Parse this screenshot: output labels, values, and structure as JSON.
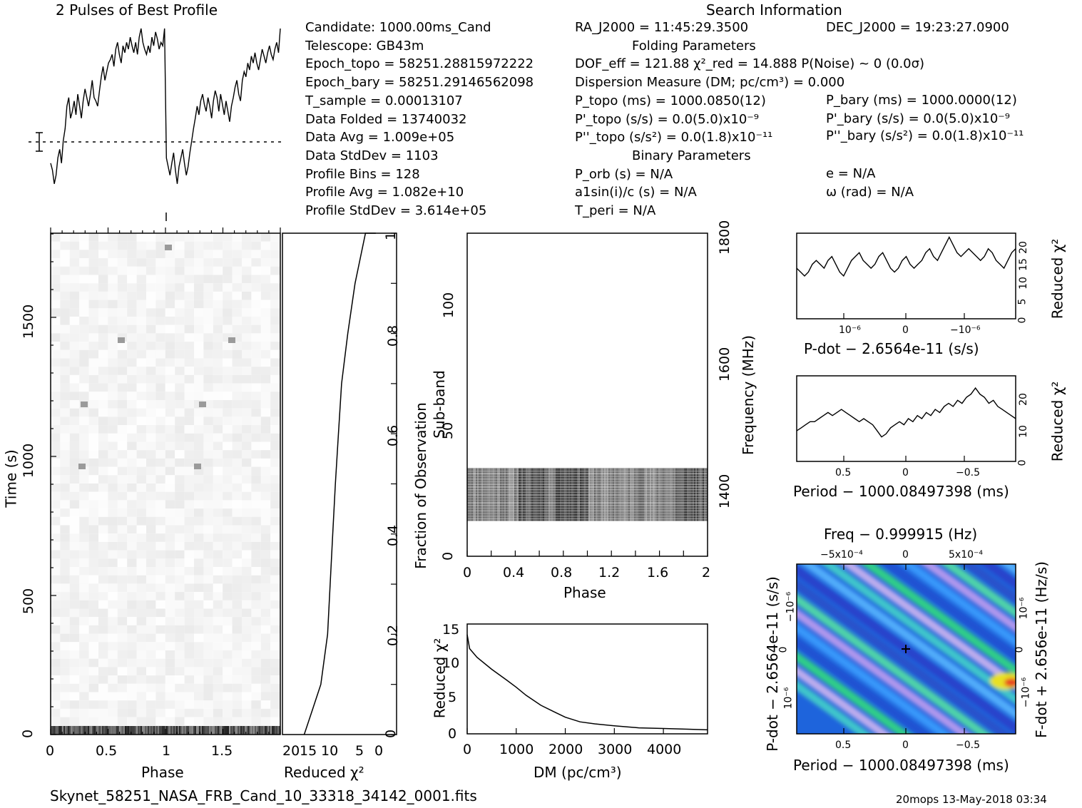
{
  "page": {
    "profile_title": "2 Pulses of Best Profile",
    "search_title": "Search Information",
    "filename": "Skynet_58251_NASA_FRB_Cand_10_33318_34142_0001.fits",
    "footer_right": "20mops 13-May-2018 03:34"
  },
  "info": {
    "col1": [
      "Candidate:  1000.00ms_Cand",
      "Telescope:  GB43m",
      "Epoch_topo = 58251.28815972222",
      "Epoch_bary = 58251.29146562098",
      "T_sample        =   0.00013107",
      "Data Folded     =   13740032",
      "Data Avg        =   1.009e+05",
      "Data StdDev     =   1103",
      "Profile Bins    =   128",
      "Profile Avg     =   1.082e+10",
      "Profile StdDev  =   3.614e+05"
    ],
    "col2": [
      "RA_J2000 = 11:45:29.3500",
      "Folding Parameters",
      "DOF_eff = 121.88  χ²_red = 14.888  P(Noise) ~ 0   (0.0σ)",
      "Dispersion Measure (DM; pc/cm³) = 0.000",
      "P_topo (ms) =  1000.0850(12)",
      "P'_topo (s/s) = 0.0(5.0)x10⁻⁹",
      "P''_topo (s/s²) = 0.0(1.8)x10⁻¹¹",
      "Binary Parameters",
      "P_orb (s) = N/A",
      "a1sin(i)/c (s) = N/A",
      "T_peri = N/A"
    ],
    "col3": [
      "DEC_J2000 = 19:23:27.0900",
      "P_bary (ms) =  1000.0000(12)",
      "P'_bary (s/s) = 0.0(5.0)x10⁻⁹",
      "P''_bary (s/s²) = 0.0(1.8)x10⁻¹¹",
      "e = N/A",
      "ω (rad) = N/A"
    ]
  },
  "chart_data": [
    {
      "id": "profile",
      "type": "line",
      "title": "2 Pulses of Best Profile",
      "x": "phase 0–2 (2 pulses)",
      "values": [
        0.22,
        0.18,
        0.1,
        0.15,
        0.25,
        0.3,
        0.22,
        0.35,
        0.42,
        0.55,
        0.6,
        0.48,
        0.52,
        0.58,
        0.5,
        0.62,
        0.55,
        0.48,
        0.58,
        0.65,
        0.6,
        0.55,
        0.62,
        0.7,
        0.6,
        0.58,
        0.55,
        0.64,
        0.72,
        0.78,
        0.7,
        0.75,
        0.8,
        0.82,
        0.85,
        0.78,
        0.88,
        0.92,
        0.85,
        0.8,
        0.9,
        0.86,
        0.92,
        0.88,
        0.95,
        0.9,
        0.86,
        0.92,
        0.85,
        0.95,
        1.0,
        0.92,
        0.88,
        0.85,
        0.9,
        0.86,
        0.95,
        0.9,
        0.98,
        0.94,
        0.88,
        0.92,
        0.9,
        1.0,
        0.25,
        0.2,
        0.15,
        0.22,
        0.28,
        0.18,
        0.1,
        0.2,
        0.25,
        0.3,
        0.22,
        0.15,
        0.2,
        0.28,
        0.35,
        0.42,
        0.48,
        0.55,
        0.5,
        0.58,
        0.62,
        0.56,
        0.52,
        0.6,
        0.55,
        0.48,
        0.58,
        0.64,
        0.6,
        0.52,
        0.62,
        0.56,
        0.5,
        0.58,
        0.52,
        0.46,
        0.55,
        0.6,
        0.66,
        0.7,
        0.62,
        0.58,
        0.7,
        0.75,
        0.72,
        0.8,
        0.76,
        0.84,
        0.8,
        0.86,
        0.8,
        0.76,
        0.82,
        0.88,
        0.84,
        0.8,
        0.86,
        0.9,
        0.85,
        0.82,
        0.88,
        0.92,
        0.86,
        1.0
      ]
    },
    {
      "id": "time_phase",
      "type": "heatmap",
      "xlabel": "Phase",
      "ylabel": "Time (s)",
      "xlim": [
        0,
        2
      ],
      "ylim": [
        0,
        1800
      ],
      "x_ticks": [
        "0",
        "0.5",
        "1",
        "1.5"
      ],
      "y_ticks": [
        "0",
        "500",
        "1000",
        "1500"
      ]
    },
    {
      "id": "reduced_chi2_vs_time",
      "type": "line",
      "xlabel": "Reduced χ²",
      "ylabel": "Fraction of Observation",
      "x_ticks": [
        "20",
        "15",
        "10",
        "5",
        "0"
      ],
      "y_ticks": [
        "0",
        "0.2",
        "0.4",
        "0.6",
        "0.8",
        "1"
      ],
      "x": [
        17.8,
        16.2,
        14.6,
        13.3,
        12.8,
        12.3,
        11.8,
        11.2,
        10.6,
        9.4,
        8.0,
        6.0,
        5.0,
        4.0
      ],
      "y": [
        0.0,
        0.05,
        0.1,
        0.2,
        0.3,
        0.4,
        0.5,
        0.6,
        0.7,
        0.8,
        0.9,
        1.0,
        1.0,
        1.0
      ]
    },
    {
      "id": "subband_phase",
      "type": "heatmap",
      "xlabel": "Phase",
      "ylabel": "Sub-band",
      "y2label": "Frequency (MHz)",
      "xlim": [
        0,
        2
      ],
      "ylim": [
        0,
        128
      ],
      "x_ticks": [
        "0",
        "0.4",
        "0.8",
        "1.2",
        "1.6",
        "2"
      ],
      "y_ticks": [
        "0",
        "50",
        "100"
      ],
      "y2_ticks": [
        "1400",
        "1600",
        "1800"
      ],
      "band_subbands": [
        14,
        35
      ]
    },
    {
      "id": "dm_curve",
      "type": "line",
      "xlabel": "DM (pc/cm³)",
      "ylabel": "Reduced χ²",
      "xlim": [
        0,
        4900
      ],
      "ylim": [
        0,
        16.5
      ],
      "x_ticks": [
        "0",
        "1000",
        "2000",
        "3000",
        "4000"
      ],
      "y_ticks": [
        "0",
        "5",
        "10",
        "15"
      ],
      "x": [
        0,
        50,
        200,
        500,
        800,
        1000,
        1200,
        1500,
        1800,
        2000,
        2300,
        2600,
        3000,
        3500,
        4000,
        4500,
        4900
      ],
      "y": [
        14.9,
        12.8,
        11.5,
        9.7,
        8.1,
        7.0,
        5.8,
        4.3,
        3.2,
        2.5,
        1.8,
        1.5,
        1.2,
        0.9,
        0.8,
        0.7,
        0.6
      ]
    },
    {
      "id": "pdot_curve",
      "type": "line",
      "xlabel": "P-dot − 2.6564e-11 (s/s)",
      "ylabel": "Reduced χ²",
      "x_ticks": [
        "10⁻⁶",
        "0",
        "−10⁻⁶"
      ],
      "y_ticks": [
        "0",
        "5",
        "10",
        "15",
        "20"
      ],
      "ylim": [
        0,
        22
      ],
      "y": [
        13,
        12,
        11,
        12,
        14,
        15,
        14,
        13,
        15,
        16,
        14,
        12,
        11,
        13,
        15,
        16,
        17,
        15,
        14,
        13,
        14,
        16,
        17,
        15,
        13,
        12,
        13,
        15,
        16,
        14,
        13,
        14,
        15,
        17,
        18,
        16,
        15,
        17,
        19,
        21,
        19,
        17,
        16,
        17,
        18,
        17,
        16,
        15,
        16,
        18,
        17,
        15,
        14,
        13,
        15,
        17,
        18
      ]
    },
    {
      "id": "period_curve",
      "type": "line",
      "xlabel": "Period − 1000.08497398 (ms)",
      "ylabel": "Reduced χ²",
      "x_ticks": [
        "0.5",
        "0",
        "−0.5"
      ],
      "y_ticks": [
        "0",
        "10",
        "20"
      ],
      "ylim": [
        0,
        28
      ],
      "y": [
        10,
        11,
        12,
        13,
        13,
        14,
        15,
        16,
        15,
        16,
        17,
        16,
        15,
        14,
        13,
        14,
        13,
        12,
        10,
        8,
        9,
        11,
        12,
        13,
        12,
        14,
        13,
        15,
        14,
        16,
        15,
        17,
        16,
        18,
        19,
        18,
        20,
        19,
        21,
        22,
        24,
        22,
        21,
        19,
        20,
        18,
        17,
        16,
        15,
        14
      ]
    },
    {
      "id": "pp_dot_plane",
      "type": "heatmap",
      "title": "Freq − 0.999915 (Hz)",
      "xlabel": "Period − 1000.08497398 (ms)",
      "ylabel": "P-dot − 2.6564e-11 (s/s)",
      "y2label": "F-dot + 2.656e-11 (Hz/s)",
      "x_ticks": [
        "0.5",
        "0",
        "−0.5"
      ],
      "x2_ticks": [
        "−5x10⁻⁴",
        "0",
        "5x10⁻⁴"
      ],
      "y_ticks": [
        "10⁻⁶",
        "0",
        "−10⁻⁶"
      ],
      "y2_ticks": [
        "−10⁻⁶",
        "0",
        "10⁻⁶"
      ]
    }
  ]
}
